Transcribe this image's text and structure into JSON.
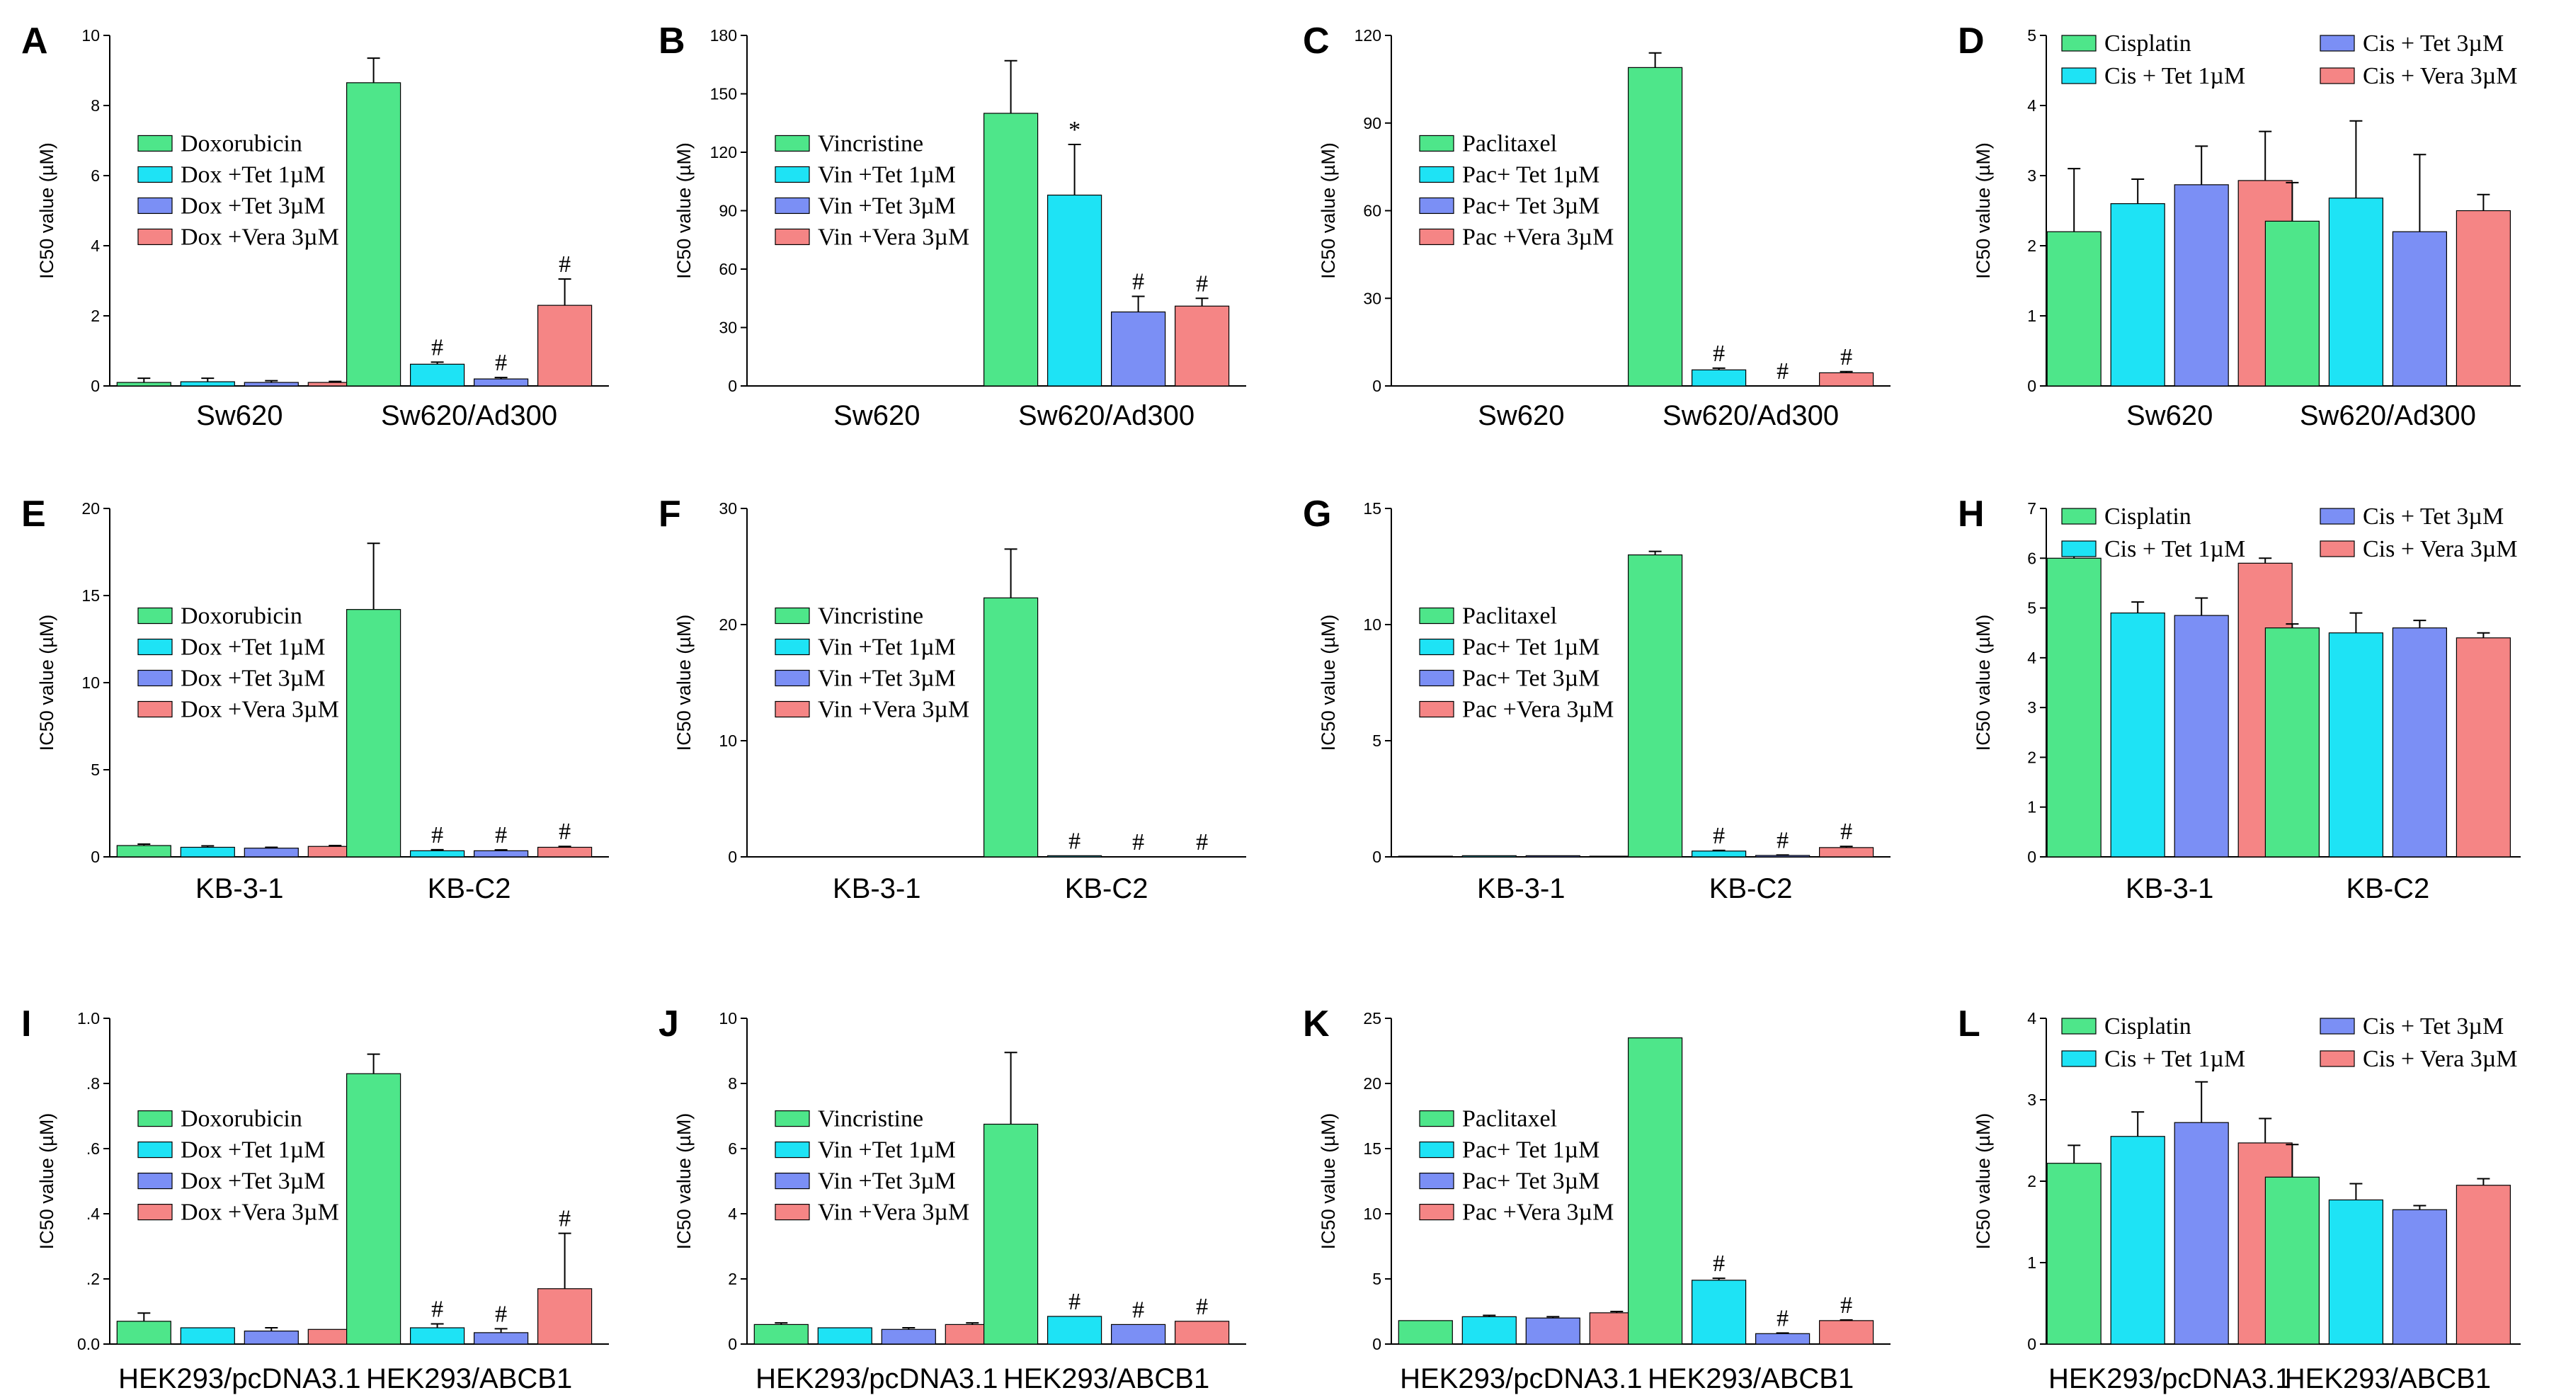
{
  "colors": {
    "drug": "#4ee68a",
    "tet1": "#1ee3f5",
    "tet3": "#7b8ff5",
    "vera": "#f58585",
    "axis": "#000000"
  },
  "chart_data": [
    {
      "type": "bar",
      "panel": "A",
      "title": "",
      "xlabel": "",
      "ylabel": "IC50 value (µM)",
      "ylim": [
        0,
        10
      ],
      "yticks": [
        "0",
        "2",
        "4",
        "6",
        "8",
        "10"
      ],
      "categories": [
        "Sw620",
        "Sw620/Ad300"
      ],
      "legend_position": "center-left",
      "legend_layout": "column",
      "series": [
        {
          "name": "Doxorubicin",
          "values": [
            0.1,
            8.65
          ],
          "errors": [
            0.12,
            0.7
          ],
          "labels": [
            "",
            ""
          ]
        },
        {
          "name": "Dox +Tet 1µM",
          "values": [
            0.12,
            0.62
          ],
          "errors": [
            0.1,
            0.06
          ],
          "labels": [
            "",
            "#"
          ]
        },
        {
          "name": "Dox +Tet 3µM",
          "values": [
            0.1,
            0.2
          ],
          "errors": [
            0.05,
            0.04
          ],
          "labels": [
            "",
            "#"
          ]
        },
        {
          "name": "Dox +Vera 3µM",
          "values": [
            0.1,
            2.3
          ],
          "errors": [
            0.03,
            0.75
          ],
          "labels": [
            "",
            "#"
          ]
        }
      ]
    },
    {
      "type": "bar",
      "panel": "B",
      "title": "",
      "xlabel": "",
      "ylabel": "IC50 value (µM)",
      "ylim": [
        0,
        180
      ],
      "yticks": [
        "0",
        "30",
        "60",
        "90",
        "120",
        "150",
        "180"
      ],
      "categories": [
        "Sw620",
        "Sw620/Ad300"
      ],
      "legend_position": "center-left",
      "legend_layout": "column",
      "series": [
        {
          "name": "Vincristine",
          "values": [
            0,
            140
          ],
          "errors": [
            0,
            27
          ],
          "labels": [
            "",
            ""
          ]
        },
        {
          "name": "Vin +Tet 1µM",
          "values": [
            0,
            98
          ],
          "errors": [
            0,
            26
          ],
          "labels": [
            "",
            "*"
          ]
        },
        {
          "name": "Vin +Tet 3µM",
          "values": [
            0,
            38
          ],
          "errors": [
            0,
            8
          ],
          "labels": [
            "",
            "#"
          ]
        },
        {
          "name": "Vin +Vera 3µM",
          "values": [
            0,
            41
          ],
          "errors": [
            0,
            4
          ],
          "labels": [
            "",
            "#"
          ]
        }
      ]
    },
    {
      "type": "bar",
      "panel": "C",
      "title": "",
      "xlabel": "",
      "ylabel": "IC50 value (µM)",
      "ylim": [
        0,
        120
      ],
      "yticks": [
        "0",
        "30",
        "60",
        "90",
        "120"
      ],
      "categories": [
        "Sw620",
        "Sw620/Ad300"
      ],
      "legend_position": "center-left",
      "legend_layout": "column",
      "series": [
        {
          "name": "Paclitaxel",
          "values": [
            0,
            109
          ],
          "errors": [
            0,
            5
          ],
          "labels": [
            "",
            ""
          ]
        },
        {
          "name": "Pac+ Tet 1µM",
          "values": [
            0,
            5.5
          ],
          "errors": [
            0,
            0.6
          ],
          "labels": [
            "",
            "#"
          ]
        },
        {
          "name": "Pac+ Tet 3µM",
          "values": [
            0,
            0
          ],
          "errors": [
            0,
            0
          ],
          "labels": [
            "",
            "#"
          ]
        },
        {
          "name": "Pac +Vera 3µM",
          "values": [
            0,
            4.5
          ],
          "errors": [
            0,
            0.4
          ],
          "labels": [
            "",
            "#"
          ]
        }
      ]
    },
    {
      "type": "bar",
      "panel": "D",
      "title": "",
      "xlabel": "",
      "ylabel": "IC50 value (µM)",
      "ylim": [
        0,
        5
      ],
      "yticks": [
        "0",
        "1",
        "2",
        "3",
        "4",
        "5"
      ],
      "categories": [
        "Sw620",
        "Sw620/Ad300"
      ],
      "legend_position": "top",
      "legend_layout": "grid",
      "series": [
        {
          "name": "Cisplatin",
          "values": [
            2.2,
            2.35
          ],
          "errors": [
            0.9,
            0.55
          ],
          "labels": [
            "",
            ""
          ]
        },
        {
          "name": "Cis + Tet 1µM",
          "values": [
            2.6,
            2.68
          ],
          "errors": [
            0.35,
            1.1
          ],
          "labels": [
            "",
            ""
          ]
        },
        {
          "name": "Cis + Tet 3µM",
          "values": [
            2.87,
            2.2
          ],
          "errors": [
            0.55,
            1.1
          ],
          "labels": [
            "",
            ""
          ]
        },
        {
          "name": "Cis + Vera 3µM",
          "values": [
            2.93,
            2.5
          ],
          "errors": [
            0.7,
            0.23
          ],
          "labels": [
            "",
            ""
          ]
        }
      ]
    },
    {
      "type": "bar",
      "panel": "E",
      "title": "",
      "xlabel": "",
      "ylabel": "IC50 value (µM)",
      "ylim": [
        0,
        20
      ],
      "yticks": [
        "0",
        "5",
        "10",
        "15",
        "20"
      ],
      "categories": [
        "KB-3-1",
        "KB-C2"
      ],
      "legend_position": "center-left",
      "legend_layout": "column",
      "series": [
        {
          "name": "Doxorubicin",
          "values": [
            0.65,
            14.2
          ],
          "errors": [
            0.08,
            3.8
          ],
          "labels": [
            "",
            ""
          ]
        },
        {
          "name": "Dox +Tet 1µM",
          "values": [
            0.55,
            0.35
          ],
          "errors": [
            0.08,
            0.06
          ],
          "labels": [
            "",
            "#"
          ]
        },
        {
          "name": "Dox +Tet 3µM",
          "values": [
            0.5,
            0.35
          ],
          "errors": [
            0.05,
            0.05
          ],
          "labels": [
            "",
            "#"
          ]
        },
        {
          "name": "Dox +Vera 3µM",
          "values": [
            0.6,
            0.55
          ],
          "errors": [
            0.05,
            0.05
          ],
          "labels": [
            "",
            "#"
          ]
        }
      ]
    },
    {
      "type": "bar",
      "panel": "F",
      "title": "",
      "xlabel": "",
      "ylabel": "IC50 value (µM)",
      "ylim": [
        0,
        30
      ],
      "yticks": [
        "0",
        "10",
        "20",
        "30"
      ],
      "categories": [
        "KB-3-1",
        "KB-C2"
      ],
      "legend_position": "center-left",
      "legend_layout": "column",
      "series": [
        {
          "name": "Vincristine",
          "values": [
            0,
            22.3
          ],
          "errors": [
            0,
            4.2
          ],
          "labels": [
            "",
            ""
          ]
        },
        {
          "name": "Vin +Tet 1µM",
          "values": [
            0,
            0.1
          ],
          "errors": [
            0,
            0
          ],
          "labels": [
            "",
            "#"
          ]
        },
        {
          "name": "Vin +Tet 3µM",
          "values": [
            0,
            0
          ],
          "errors": [
            0,
            0
          ],
          "labels": [
            "",
            "#"
          ]
        },
        {
          "name": "Vin +Vera 3µM",
          "values": [
            0,
            0
          ],
          "errors": [
            0,
            0
          ],
          "labels": [
            "",
            "#"
          ]
        }
      ]
    },
    {
      "type": "bar",
      "panel": "G",
      "title": "",
      "xlabel": "",
      "ylabel": "IC50 value (µM)",
      "ylim": [
        0,
        15
      ],
      "yticks": [
        "0",
        "5",
        "10",
        "15"
      ],
      "categories": [
        "KB-3-1",
        "KB-C2"
      ],
      "legend_position": "center-left",
      "legend_layout": "column",
      "series": [
        {
          "name": "Paclitaxel",
          "values": [
            0.03,
            13.0
          ],
          "errors": [
            0,
            0.15
          ],
          "labels": [
            "",
            ""
          ]
        },
        {
          "name": "Pac+ Tet 1µM",
          "values": [
            0.05,
            0.25
          ],
          "errors": [
            0,
            0.03
          ],
          "labels": [
            "",
            "#"
          ]
        },
        {
          "name": "Pac+ Tet 3µM",
          "values": [
            0.05,
            0.06
          ],
          "errors": [
            0,
            0.02
          ],
          "labels": [
            "",
            "#"
          ]
        },
        {
          "name": "Pac +Vera 3µM",
          "values": [
            0.03,
            0.4
          ],
          "errors": [
            0,
            0.05
          ],
          "labels": [
            "",
            "#"
          ]
        }
      ]
    },
    {
      "type": "bar",
      "panel": "H",
      "title": "",
      "xlabel": "",
      "ylabel": "IC50 value (µM)",
      "ylim": [
        0,
        7
      ],
      "yticks": [
        "0",
        "1",
        "2",
        "3",
        "4",
        "5",
        "6",
        "7"
      ],
      "categories": [
        "KB-3-1",
        "KB-C2"
      ],
      "legend_position": "top",
      "legend_layout": "grid",
      "series": [
        {
          "name": "Cisplatin",
          "values": [
            6.0,
            4.6
          ],
          "errors": [
            0.22,
            0.08
          ],
          "labels": [
            "",
            ""
          ]
        },
        {
          "name": "Cis + Tet 1µM",
          "values": [
            4.9,
            4.5
          ],
          "errors": [
            0.22,
            0.4
          ],
          "labels": [
            "",
            ""
          ]
        },
        {
          "name": "Cis + Tet 3µM",
          "values": [
            4.85,
            4.6
          ],
          "errors": [
            0.35,
            0.15
          ],
          "labels": [
            "",
            ""
          ]
        },
        {
          "name": "Cis + Vera 3µM",
          "values": [
            5.9,
            4.4
          ],
          "errors": [
            0.1,
            0.1
          ],
          "labels": [
            "",
            ""
          ]
        }
      ]
    },
    {
      "type": "bar",
      "panel": "I",
      "title": "",
      "xlabel": "",
      "ylabel": "IC50 value (µM)",
      "ylim": [
        0,
        1.0
      ],
      "yticks": [
        "0.0",
        ".2",
        ".4",
        ".6",
        ".8",
        "1.0"
      ],
      "categories": [
        "HEK293/pcDNA3.1",
        "HEK293/ABCB1"
      ],
      "legend_position": "center-left",
      "legend_layout": "column",
      "series": [
        {
          "name": "Doxorubicin",
          "values": [
            0.07,
            0.83
          ],
          "errors": [
            0.025,
            0.06
          ],
          "labels": [
            "",
            ""
          ]
        },
        {
          "name": "Dox +Tet 1µM",
          "values": [
            0.05,
            0.05
          ],
          "errors": [
            0,
            0.012
          ],
          "labels": [
            "",
            "#"
          ]
        },
        {
          "name": "Dox +Tet 3µM",
          "values": [
            0.04,
            0.035
          ],
          "errors": [
            0.01,
            0.012
          ],
          "labels": [
            "",
            "#"
          ]
        },
        {
          "name": "Dox +Vera 3µM",
          "values": [
            0.045,
            0.17
          ],
          "errors": [
            0,
            0.17
          ],
          "labels": [
            "",
            "#"
          ]
        }
      ]
    },
    {
      "type": "bar",
      "panel": "J",
      "title": "",
      "xlabel": "",
      "ylabel": "IC50 value (µM)",
      "ylim": [
        0,
        10
      ],
      "yticks": [
        "0",
        "2",
        "4",
        "6",
        "8",
        "10"
      ],
      "categories": [
        "HEK293/pcDNA3.1",
        "HEK293/ABCB1"
      ],
      "legend_position": "center-left",
      "legend_layout": "column",
      "series": [
        {
          "name": "Vincristine",
          "values": [
            0.6,
            6.75
          ],
          "errors": [
            0.05,
            2.2
          ],
          "labels": [
            "",
            ""
          ]
        },
        {
          "name": "Vin +Tet 1µM",
          "values": [
            0.5,
            0.85
          ],
          "errors": [
            0,
            0
          ],
          "labels": [
            "",
            "#"
          ]
        },
        {
          "name": "Vin +Tet 3µM",
          "values": [
            0.45,
            0.6
          ],
          "errors": [
            0.05,
            0
          ],
          "labels": [
            "",
            "#"
          ]
        },
        {
          "name": "Vin +Vera 3µM",
          "values": [
            0.6,
            0.7
          ],
          "errors": [
            0.05,
            0
          ],
          "labels": [
            "",
            "#"
          ]
        }
      ]
    },
    {
      "type": "bar",
      "panel": "K",
      "title": "",
      "xlabel": "",
      "ylabel": "IC50 value (µM)",
      "ylim": [
        0,
        25
      ],
      "yticks": [
        "0",
        "5",
        "10",
        "15",
        "20",
        "25"
      ],
      "categories": [
        "HEK293/pcDNA3.1",
        "HEK293/ABCB1"
      ],
      "legend_position": "center-left",
      "legend_layout": "column",
      "series": [
        {
          "name": "Paclitaxel",
          "values": [
            1.8,
            23.5
          ],
          "errors": [
            0,
            0
          ],
          "labels": [
            "",
            ""
          ]
        },
        {
          "name": "Pac+ Tet 1µM",
          "values": [
            2.1,
            4.9
          ],
          "errors": [
            0.1,
            0.15
          ],
          "labels": [
            "",
            "#"
          ]
        },
        {
          "name": "Pac+ Tet 3µM",
          "values": [
            2.0,
            0.8
          ],
          "errors": [
            0.1,
            0.05
          ],
          "labels": [
            "",
            "#"
          ]
        },
        {
          "name": "Pac +Vera 3µM",
          "values": [
            2.4,
            1.8
          ],
          "errors": [
            0.1,
            0.05
          ],
          "labels": [
            "",
            "#"
          ]
        }
      ]
    },
    {
      "type": "bar",
      "panel": "L",
      "title": "",
      "xlabel": "",
      "ylabel": "IC50 value (µM)",
      "ylim": [
        0,
        4
      ],
      "yticks": [
        "0",
        "1",
        "2",
        "3",
        "4"
      ],
      "categories": [
        "HEK293/pcDNA3.1",
        "HEK293/ABCB1"
      ],
      "legend_position": "top",
      "legend_layout": "grid",
      "series": [
        {
          "name": "Cisplatin",
          "values": [
            2.22,
            2.05
          ],
          "errors": [
            0.22,
            0.4
          ],
          "labels": [
            "",
            ""
          ]
        },
        {
          "name": "Cis + Tet 1µM",
          "values": [
            2.55,
            1.77
          ],
          "errors": [
            0.3,
            0.2
          ],
          "labels": [
            "",
            ""
          ]
        },
        {
          "name": "Cis + Tet 3µM",
          "values": [
            2.72,
            1.65
          ],
          "errors": [
            0.5,
            0.05
          ],
          "labels": [
            "",
            ""
          ]
        },
        {
          "name": "Cis + Vera 3µM",
          "values": [
            2.47,
            1.95
          ],
          "errors": [
            0.3,
            0.08
          ],
          "labels": [
            "",
            ""
          ]
        }
      ]
    }
  ]
}
